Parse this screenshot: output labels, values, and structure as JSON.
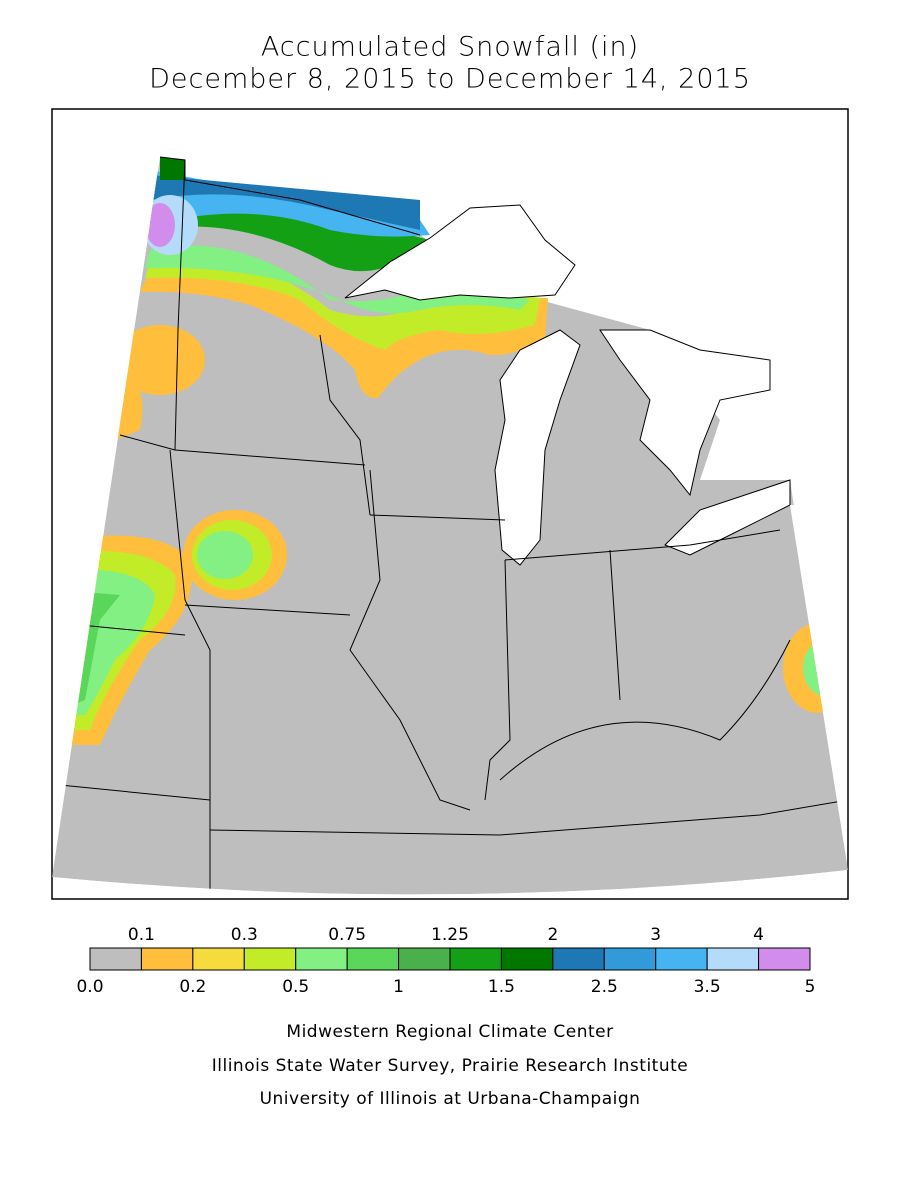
{
  "title": [
    "Accumulated Snowfall (in)",
    "December 8, 2015 to December 14, 2015"
  ],
  "legend": {
    "labels": [
      "0.0",
      "0.1",
      "0.2",
      "0.3",
      "0.5",
      "0.75",
      "1",
      "1.25",
      "1.5",
      "2",
      "2.5",
      "3",
      "3.5",
      "4",
      "5"
    ],
    "colors": [
      "#bebebe",
      "#ffbe3c",
      "#f5dc3c",
      "#c3ec28",
      "#82f082",
      "#5ad75a",
      "#4bb04b",
      "#14a014",
      "#007800",
      "#1e78b4",
      "#329ad8",
      "#46b4f0",
      "#b4dcfa",
      "#d28ceb"
    ]
  },
  "credits": [
    "Midwestern Regional Climate Center",
    "Illinois State Water Survey, Prairie Research Institute",
    "University of Illinois at Urbana-Champaign"
  ]
}
